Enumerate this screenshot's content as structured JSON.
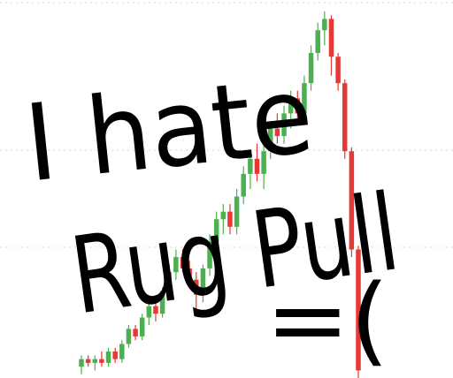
{
  "chart_data": {
    "type": "candlestick",
    "annotations": [
      "I hate",
      "Rug Pull",
      "=("
    ],
    "open": [
      3,
      5,
      4,
      5,
      4,
      7,
      5,
      9,
      13,
      11,
      16,
      19,
      17,
      23,
      28,
      32,
      29,
      26,
      22,
      29,
      36,
      42,
      44,
      40,
      48,
      54,
      58,
      54,
      60,
      66,
      64,
      70,
      74,
      70,
      78,
      86,
      92,
      95,
      85,
      78,
      60,
      34
    ],
    "high": [
      6,
      6,
      6,
      7,
      8,
      8,
      10,
      14,
      14,
      17,
      20,
      21,
      24,
      30,
      34,
      34,
      31,
      28,
      30,
      38,
      44,
      46,
      46,
      50,
      56,
      60,
      62,
      62,
      68,
      70,
      72,
      76,
      76,
      80,
      88,
      94,
      97,
      96,
      86,
      79,
      61,
      35
    ],
    "low": [
      1,
      3,
      2,
      3,
      3,
      4,
      4,
      8,
      10,
      10,
      14,
      15,
      16,
      22,
      26,
      28,
      24,
      18,
      20,
      27,
      34,
      38,
      38,
      38,
      46,
      50,
      52,
      50,
      58,
      62,
      62,
      66,
      68,
      68,
      76,
      84,
      88,
      80,
      76,
      58,
      32,
      0
    ],
    "close": [
      5,
      4,
      5,
      4,
      7,
      5,
      9,
      13,
      11,
      16,
      19,
      17,
      23,
      28,
      32,
      29,
      26,
      22,
      29,
      36,
      42,
      44,
      40,
      48,
      54,
      58,
      54,
      60,
      66,
      64,
      70,
      74,
      70,
      78,
      86,
      92,
      95,
      85,
      78,
      60,
      34,
      2
    ],
    "up_color": "#4caf50",
    "down_color": "#e53935",
    "ylim": [
      0,
      100
    ]
  }
}
